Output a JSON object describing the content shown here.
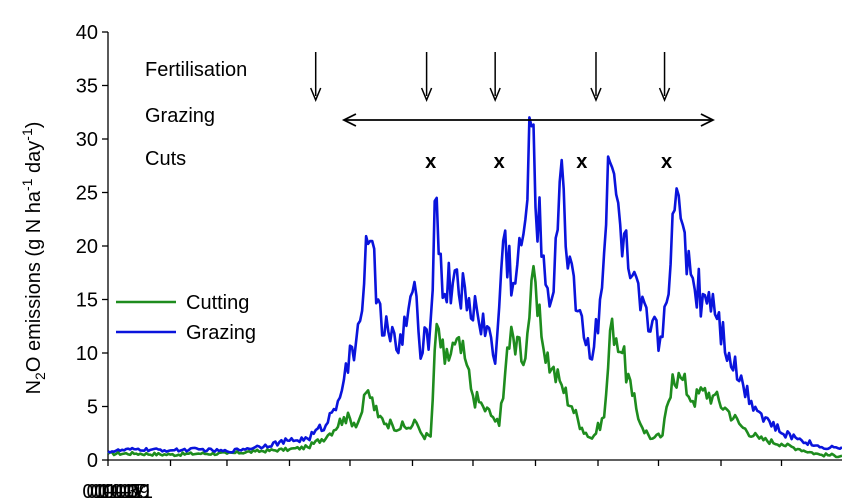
{
  "chart_data": {
    "type": "line",
    "title": "",
    "ylabel": {
      "prefix": "N",
      "sub": "2",
      "mid": "O emissions (g N ha",
      "sup1": "-1",
      "mid2": " day",
      "sup2": "-1",
      "suffix": ")"
    },
    "xlabel": "",
    "x_ticks": [
      "01-01",
      "01-03",
      "01-05",
      "01-07",
      "01-09",
      "01-11"
    ],
    "xlim_day": [
      1,
      365
    ],
    "ylim": [
      0,
      40
    ],
    "y_ticks": [
      "0",
      "5",
      "10",
      "15",
      "20",
      "25",
      "30",
      "35",
      "40"
    ],
    "grid": false,
    "legend": {
      "position": "left-middle",
      "entries": [
        {
          "name": "Cutting",
          "color": "#1e8c1e"
        },
        {
          "name": "Grazing",
          "color": "#0a14dc"
        }
      ]
    },
    "annotations": {
      "fertilisation_label": "Fertilisation",
      "grazing_label": "Grazing",
      "cuts_label": "Cuts",
      "cut_marker": "x",
      "fertilisation_dates": [
        "04-14",
        "06-08",
        "07-12",
        "08-31",
        "10-04"
      ],
      "grazing_period": [
        "04-28",
        "10-28"
      ],
      "cut_dates": [
        "06-10",
        "07-14",
        "08-24",
        "10-05"
      ]
    },
    "series": [
      {
        "name": "Cutting",
        "color": "#1e8c1e",
        "points": [
          [
            "01-01",
            0.6
          ],
          [
            "01-15",
            0.6
          ],
          [
            "02-01",
            0.5
          ],
          [
            "02-15",
            0.6
          ],
          [
            "03-01",
            0.6
          ],
          [
            "03-15",
            0.8
          ],
          [
            "04-01",
            1.0
          ],
          [
            "04-10",
            1.2
          ],
          [
            "04-20",
            2.3
          ],
          [
            "04-28",
            4.0
          ],
          [
            "05-05",
            3.5
          ],
          [
            "05-10",
            6.5
          ],
          [
            "05-15",
            4.0
          ],
          [
            "05-22",
            3.3
          ],
          [
            "05-30",
            3.0
          ],
          [
            "06-03",
            3.5
          ],
          [
            "06-06",
            2.3
          ],
          [
            "06-10",
            2.2
          ],
          [
            "06-13",
            12.7
          ],
          [
            "06-17",
            9.0
          ],
          [
            "06-22",
            10.8
          ],
          [
            "06-27",
            9.5
          ],
          [
            "07-01",
            6.0
          ],
          [
            "07-06",
            5.0
          ],
          [
            "07-11",
            4.0
          ],
          [
            "07-14",
            3.2
          ],
          [
            "07-18",
            10.5
          ],
          [
            "07-23",
            11.5
          ],
          [
            "07-27",
            9.5
          ],
          [
            "07-30",
            16.8
          ],
          [
            "08-04",
            11.5
          ],
          [
            "08-09",
            8.5
          ],
          [
            "08-14",
            7.0
          ],
          [
            "08-19",
            5.0
          ],
          [
            "08-24",
            3.0
          ],
          [
            "08-29",
            2.0
          ],
          [
            "09-04",
            4.0
          ],
          [
            "09-08",
            13.2
          ],
          [
            "09-13",
            10.0
          ],
          [
            "09-18",
            6.0
          ],
          [
            "09-23",
            3.0
          ],
          [
            "09-28",
            2.0
          ],
          [
            "10-03",
            2.3
          ],
          [
            "10-08",
            8.0
          ],
          [
            "10-13",
            7.5
          ],
          [
            "10-18",
            5.5
          ],
          [
            "10-23",
            6.5
          ],
          [
            "10-28",
            6.0
          ],
          [
            "11-05",
            4.5
          ],
          [
            "11-12",
            3.0
          ],
          [
            "11-20",
            2.0
          ],
          [
            "12-01",
            1.5
          ],
          [
            "12-10",
            1.0
          ],
          [
            "12-20",
            0.5
          ],
          [
            "12-31",
            0.4
          ]
        ]
      },
      {
        "name": "Grazing",
        "color": "#0a14dc",
        "points": [
          [
            "01-01",
            0.8
          ],
          [
            "01-15",
            1.0
          ],
          [
            "02-01",
            0.9
          ],
          [
            "02-15",
            1.0
          ],
          [
            "03-01",
            0.8
          ],
          [
            "03-15",
            1.2
          ],
          [
            "04-01",
            1.8
          ],
          [
            "04-10",
            2.0
          ],
          [
            "04-20",
            3.5
          ],
          [
            "04-28",
            7.5
          ],
          [
            "05-04",
            11.0
          ],
          [
            "05-10",
            20.2
          ],
          [
            "05-15",
            15.0
          ],
          [
            "05-20",
            12.0
          ],
          [
            "05-25",
            10.0
          ],
          [
            "06-01",
            15.7
          ],
          [
            "06-06",
            10.0
          ],
          [
            "06-10",
            13.0
          ],
          [
            "06-12",
            24.2
          ],
          [
            "06-17",
            15.5
          ],
          [
            "06-23",
            17.8
          ],
          [
            "06-28",
            14.0
          ],
          [
            "07-03",
            14.0
          ],
          [
            "07-08",
            12.5
          ],
          [
            "07-12",
            9.0
          ],
          [
            "07-16",
            20.5
          ],
          [
            "07-22",
            16.5
          ],
          [
            "07-27",
            22.5
          ],
          [
            "07-30",
            31.2
          ],
          [
            "08-04",
            19.0
          ],
          [
            "08-09",
            15.0
          ],
          [
            "08-13",
            26.0
          ],
          [
            "08-18",
            19.0
          ],
          [
            "08-23",
            14.0
          ],
          [
            "08-28",
            9.5
          ],
          [
            "09-02",
            15.0
          ],
          [
            "09-07",
            27.8
          ],
          [
            "09-12",
            22.0
          ],
          [
            "09-17",
            17.0
          ],
          [
            "09-22",
            14.0
          ],
          [
            "09-27",
            12.0
          ],
          [
            "10-03",
            11.5
          ],
          [
            "10-08",
            23.0
          ],
          [
            "10-13",
            22.0
          ],
          [
            "10-18",
            17.0
          ],
          [
            "10-23",
            15.5
          ],
          [
            "10-28",
            15.5
          ],
          [
            "11-05",
            10.0
          ],
          [
            "11-12",
            7.0
          ],
          [
            "11-20",
            4.5
          ],
          [
            "12-01",
            2.5
          ],
          [
            "12-10",
            2.0
          ],
          [
            "12-20",
            1.2
          ],
          [
            "12-31",
            1.2
          ]
        ]
      }
    ]
  }
}
